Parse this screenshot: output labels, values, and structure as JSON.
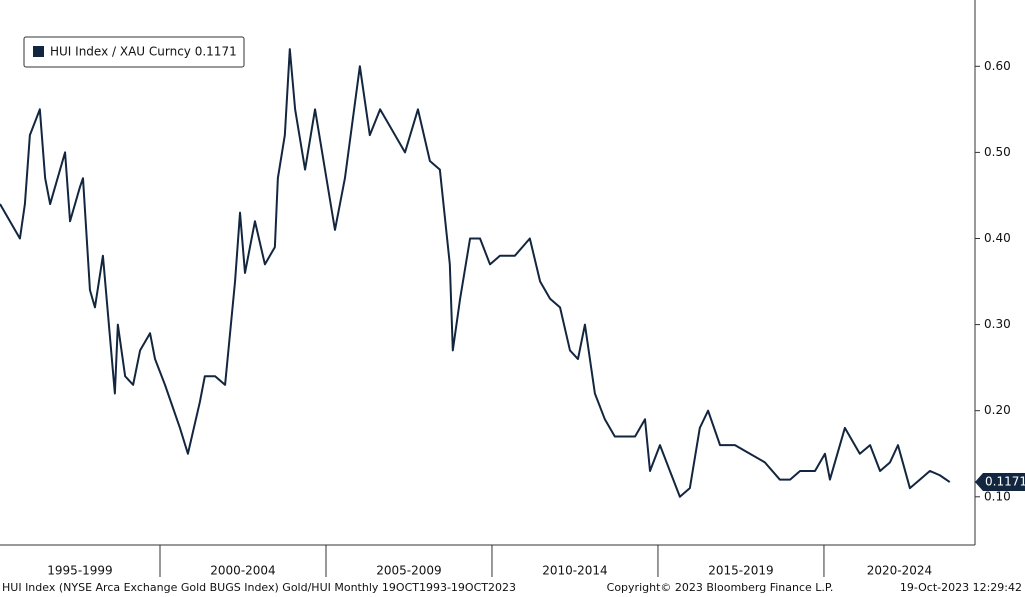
{
  "chart_data": {
    "type": "line",
    "series": [
      {
        "name": "HUI Index / XAU Curncy 0.1171",
        "color": "#13263f",
        "x": [
          1995.18,
          1995.78,
          1995.93,
          1996.08,
          1996.38,
          1996.54,
          1996.69,
          1997.14,
          1997.29,
          1997.59,
          1997.68,
          1997.89,
          1998.04,
          1998.28,
          1998.64,
          1998.73,
          1998.95,
          1999.19,
          1999.4,
          1999.7,
          1999.85,
          2000.15,
          2000.6,
          2000.84,
          2001.2,
          2001.35,
          2001.66,
          2001.96,
          2002.26,
          2002.41,
          2002.56,
          2002.86,
          2003.16,
          2003.46,
          2003.55,
          2003.76,
          2003.91,
          2004.07,
          2004.37,
          2004.67,
          2004.97,
          2005.27,
          2005.57,
          2006.02,
          2006.32,
          2006.63,
          2006.93,
          2007.38,
          2007.77,
          2008.13,
          2008.43,
          2008.73,
          2008.82,
          2009.04,
          2009.34,
          2009.64,
          2009.94,
          2010.24,
          2010.69,
          2011.14,
          2011.45,
          2011.75,
          2012.05,
          2012.35,
          2012.59,
          2012.8,
          2013.1,
          2013.4,
          2013.7,
          2014.01,
          2014.31,
          2014.61,
          2014.76,
          2015.06,
          2015.36,
          2015.66,
          2015.96,
          2016.26,
          2016.51,
          2016.87,
          2017.32,
          2017.77,
          2018.22,
          2018.67,
          2018.98,
          2019.28,
          2019.73,
          2020.03,
          2020.18,
          2020.63,
          2021.08,
          2021.39,
          2021.69,
          2021.99,
          2022.23,
          2022.59,
          2022.89,
          2023.19,
          2023.49,
          2023.79
        ],
        "values": [
          0.44,
          0.4,
          0.44,
          0.52,
          0.55,
          0.47,
          0.44,
          0.5,
          0.42,
          0.46,
          0.47,
          0.34,
          0.32,
          0.38,
          0.22,
          0.3,
          0.24,
          0.23,
          0.27,
          0.29,
          0.26,
          0.23,
          0.18,
          0.15,
          0.21,
          0.24,
          0.24,
          0.23,
          0.35,
          0.43,
          0.36,
          0.42,
          0.37,
          0.39,
          0.47,
          0.52,
          0.62,
          0.55,
          0.48,
          0.55,
          0.48,
          0.41,
          0.47,
          0.6,
          0.52,
          0.55,
          0.53,
          0.5,
          0.55,
          0.49,
          0.48,
          0.37,
          0.27,
          0.33,
          0.4,
          0.4,
          0.37,
          0.38,
          0.38,
          0.4,
          0.35,
          0.33,
          0.32,
          0.27,
          0.26,
          0.3,
          0.22,
          0.19,
          0.17,
          0.17,
          0.17,
          0.19,
          0.13,
          0.16,
          0.13,
          0.1,
          0.11,
          0.18,
          0.2,
          0.16,
          0.16,
          0.15,
          0.14,
          0.12,
          0.12,
          0.13,
          0.13,
          0.15,
          0.12,
          0.18,
          0.15,
          0.16,
          0.13,
          0.14,
          0.16,
          0.11,
          0.12,
          0.13,
          0.125,
          0.1171
        ]
      }
    ],
    "xlim": [
      1995.18,
      2024.55
    ],
    "xticks": [
      1995,
      2000,
      2005,
      2010,
      2015,
      2020,
      2025
    ],
    "xbands": [
      "1995-1999",
      "2000-2004",
      "2005-2009",
      "2010-2014",
      "2015-2019",
      "2020-2024"
    ],
    "ylim": [
      0.044,
      0.677
    ],
    "yticks": [
      {
        "value": 0.1,
        "label": "0.10"
      },
      {
        "value": 0.2,
        "label": "0.20"
      },
      {
        "value": 0.3,
        "label": "0.30"
      },
      {
        "value": 0.4,
        "label": "0.40"
      },
      {
        "value": 0.5,
        "label": "0.50"
      },
      {
        "value": 0.6,
        "label": "0.60"
      }
    ],
    "footer": {
      "left": "HUI Index (NYSE Arca Exchange Gold BUGS Index) Gold/HUI  Monthly 19OCT1993-19OCT2023",
      "center": "Copyright© 2023 Bloomberg Finance L.P.",
      "right": "19-Oct-2023 12:29:42"
    }
  }
}
